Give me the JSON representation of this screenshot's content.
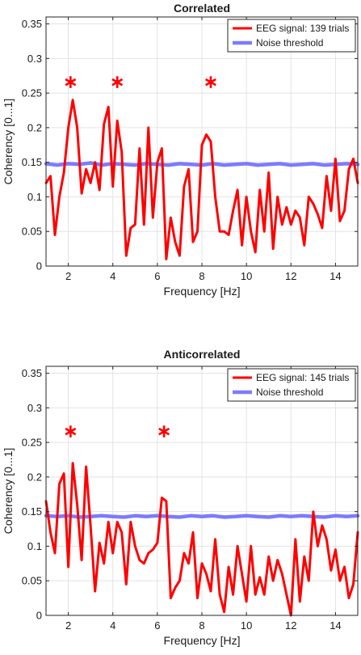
{
  "chart_data": [
    {
      "type": "line",
      "title": "Correlated",
      "xlabel": "Frequency [Hz]",
      "ylabel": "Coherency [0...1]",
      "xlim": [
        1,
        15
      ],
      "ylim": [
        0,
        0.36
      ],
      "xticks": [
        2,
        4,
        6,
        8,
        10,
        12,
        14
      ],
      "yticks": [
        0,
        0.05,
        0.1,
        0.15,
        0.2,
        0.25,
        0.3,
        0.35
      ],
      "ytick_labels": [
        "0",
        "0.05",
        "0.1",
        "0.15",
        "0.2",
        "0.25",
        "0.3",
        "0.35"
      ],
      "grid": true,
      "legend": "top-right",
      "significance_markers": [
        2.1,
        4.2,
        8.4
      ],
      "series": [
        {
          "name": "EEG signal: 139 trials",
          "color": "#ff0000",
          "x": [
            1.0,
            1.2,
            1.4,
            1.6,
            1.8,
            2.0,
            2.2,
            2.4,
            2.6,
            2.8,
            3.0,
            3.2,
            3.4,
            3.6,
            3.8,
            4.0,
            4.2,
            4.4,
            4.6,
            4.8,
            5.0,
            5.2,
            5.4,
            5.6,
            5.8,
            6.0,
            6.2,
            6.4,
            6.6,
            6.8,
            7.0,
            7.2,
            7.4,
            7.6,
            7.8,
            8.0,
            8.2,
            8.4,
            8.6,
            8.8,
            9.0,
            9.2,
            9.4,
            9.6,
            9.8,
            10.0,
            10.2,
            10.4,
            10.6,
            10.8,
            11.0,
            11.2,
            11.4,
            11.6,
            11.8,
            12.0,
            12.2,
            12.4,
            12.6,
            12.8,
            13.0,
            13.2,
            13.4,
            13.6,
            13.8,
            14.0,
            14.2,
            14.4,
            14.6,
            14.8,
            15.0
          ],
          "y": [
            0.12,
            0.13,
            0.045,
            0.1,
            0.135,
            0.2,
            0.24,
            0.2,
            0.105,
            0.14,
            0.12,
            0.15,
            0.11,
            0.205,
            0.23,
            0.115,
            0.21,
            0.165,
            0.015,
            0.055,
            0.06,
            0.17,
            0.06,
            0.2,
            0.07,
            0.15,
            0.17,
            0.01,
            0.07,
            0.035,
            0.015,
            0.115,
            0.14,
            0.035,
            0.05,
            0.175,
            0.19,
            0.18,
            0.1,
            0.05,
            0.05,
            0.045,
            0.08,
            0.11,
            0.03,
            0.1,
            0.05,
            0.02,
            0.11,
            0.05,
            0.135,
            0.025,
            0.1,
            0.06,
            0.085,
            0.06,
            0.08,
            0.07,
            0.03,
            0.1,
            0.09,
            0.075,
            0.055,
            0.13,
            0.08,
            0.155,
            0.065,
            0.08,
            0.14,
            0.155,
            0.12
          ]
        },
        {
          "name": "Noise threshold",
          "color": "#7b7bff",
          "x": [
            1.0,
            1.5,
            2.0,
            2.5,
            3.0,
            3.5,
            4.0,
            4.5,
            5.0,
            5.5,
            6.0,
            6.5,
            7.0,
            7.5,
            8.0,
            8.5,
            9.0,
            9.5,
            10.0,
            10.5,
            11.0,
            11.5,
            12.0,
            12.5,
            13.0,
            13.5,
            14.0,
            14.5,
            15.0
          ],
          "y": [
            0.148,
            0.146,
            0.148,
            0.147,
            0.149,
            0.146,
            0.148,
            0.147,
            0.146,
            0.148,
            0.147,
            0.146,
            0.148,
            0.147,
            0.146,
            0.148,
            0.146,
            0.147,
            0.148,
            0.146,
            0.147,
            0.148,
            0.146,
            0.147,
            0.148,
            0.146,
            0.147,
            0.148,
            0.147
          ]
        }
      ]
    },
    {
      "type": "line",
      "title": "Anticorrelated",
      "xlabel": "Frequency [Hz]",
      "ylabel": "Coherency [0...1]",
      "xlim": [
        1,
        15
      ],
      "ylim": [
        0,
        0.36
      ],
      "xticks": [
        2,
        4,
        6,
        8,
        10,
        12,
        14
      ],
      "yticks": [
        0,
        0.05,
        0.1,
        0.15,
        0.2,
        0.25,
        0.3,
        0.35
      ],
      "ytick_labels": [
        "0",
        "0.05",
        "0.1",
        "0.15",
        "0.2",
        "0.25",
        "0.3",
        "0.35"
      ],
      "grid": true,
      "legend": "top-right",
      "significance_markers": [
        2.1,
        6.3
      ],
      "series": [
        {
          "name": "EEG signal: 145 trials",
          "color": "#ff0000",
          "x": [
            1.0,
            1.2,
            1.4,
            1.6,
            1.8,
            2.0,
            2.2,
            2.4,
            2.6,
            2.8,
            3.0,
            3.2,
            3.4,
            3.6,
            3.8,
            4.0,
            4.2,
            4.4,
            4.6,
            4.8,
            5.0,
            5.2,
            5.4,
            5.6,
            5.8,
            6.0,
            6.2,
            6.4,
            6.6,
            6.8,
            7.0,
            7.2,
            7.4,
            7.6,
            7.8,
            8.0,
            8.2,
            8.4,
            8.6,
            8.8,
            9.0,
            9.2,
            9.4,
            9.6,
            9.8,
            10.0,
            10.2,
            10.4,
            10.6,
            10.8,
            11.0,
            11.2,
            11.4,
            11.6,
            11.8,
            12.0,
            12.2,
            12.4,
            12.6,
            12.8,
            13.0,
            13.2,
            13.4,
            13.6,
            13.8,
            14.0,
            14.2,
            14.4,
            14.6,
            14.8,
            15.0
          ],
          "y": [
            0.165,
            0.12,
            0.09,
            0.19,
            0.205,
            0.07,
            0.22,
            0.16,
            0.08,
            0.215,
            0.13,
            0.035,
            0.105,
            0.075,
            0.135,
            0.09,
            0.135,
            0.12,
            0.045,
            0.135,
            0.1,
            0.08,
            0.075,
            0.09,
            0.095,
            0.105,
            0.17,
            0.165,
            0.025,
            0.04,
            0.05,
            0.09,
            0.075,
            0.12,
            0.025,
            0.075,
            0.06,
            0.035,
            0.11,
            0.03,
            0.005,
            0.07,
            0.03,
            0.1,
            0.06,
            0.02,
            0.1,
            0.03,
            0.055,
            0.03,
            0.085,
            0.05,
            0.08,
            0.06,
            0.03,
            0.0,
            0.11,
            0.02,
            0.085,
            0.05,
            0.15,
            0.1,
            0.13,
            0.11,
            0.065,
            0.095,
            0.05,
            0.07,
            0.025,
            0.045,
            0.12
          ]
        },
        {
          "name": "Noise threshold",
          "color": "#7b7bff",
          "x": [
            1.0,
            1.5,
            2.0,
            2.5,
            3.0,
            3.5,
            4.0,
            4.5,
            5.0,
            5.5,
            6.0,
            6.5,
            7.0,
            7.5,
            8.0,
            8.5,
            9.0,
            9.5,
            10.0,
            10.5,
            11.0,
            11.5,
            12.0,
            12.5,
            13.0,
            13.5,
            14.0,
            14.5,
            15.0
          ],
          "y": [
            0.144,
            0.143,
            0.144,
            0.142,
            0.143,
            0.144,
            0.143,
            0.142,
            0.144,
            0.143,
            0.144,
            0.143,
            0.142,
            0.144,
            0.143,
            0.144,
            0.142,
            0.143,
            0.144,
            0.143,
            0.142,
            0.144,
            0.143,
            0.144,
            0.143,
            0.142,
            0.144,
            0.143,
            0.144
          ]
        }
      ]
    }
  ]
}
